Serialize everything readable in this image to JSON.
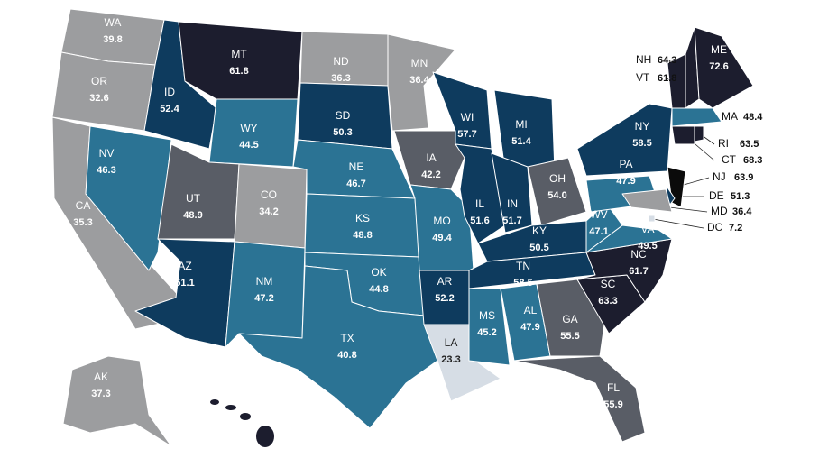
{
  "states": [
    {
      "abbr": "WA",
      "value": 39.8,
      "color": "#9c9d9f"
    },
    {
      "abbr": "OR",
      "value": 32.6,
      "color": "#9c9d9f"
    },
    {
      "abbr": "CA",
      "value": 35.3,
      "color": "#9c9d9f"
    },
    {
      "abbr": "NV",
      "value": 46.3,
      "color": "#2b7394"
    },
    {
      "abbr": "ID",
      "value": 52.4,
      "color": "#0e3b5e"
    },
    {
      "abbr": "MT",
      "value": 61.8,
      "color": "#1c1d2e"
    },
    {
      "abbr": "WY",
      "value": 44.5,
      "color": "#2b7394"
    },
    {
      "abbr": "UT",
      "value": 48.9,
      "color": "#595d66"
    },
    {
      "abbr": "CO",
      "value": 34.2,
      "color": "#9c9d9f"
    },
    {
      "abbr": "AZ",
      "value": 51.1,
      "color": "#0e3b5e"
    },
    {
      "abbr": "NM",
      "value": 47.2,
      "color": "#2b7394"
    },
    {
      "abbr": "ND",
      "value": 36.3,
      "color": "#9c9d9f"
    },
    {
      "abbr": "SD",
      "value": 50.3,
      "color": "#0e3b5e"
    },
    {
      "abbr": "NE",
      "value": 46.7,
      "color": "#2b7394"
    },
    {
      "abbr": "KS",
      "value": 48.8,
      "color": "#2b7394"
    },
    {
      "abbr": "OK",
      "value": 44.8,
      "color": "#2b7394"
    },
    {
      "abbr": "TX",
      "value": 40.8,
      "color": "#2b7394"
    },
    {
      "abbr": "MN",
      "value": 36.4,
      "color": "#9c9d9f"
    },
    {
      "abbr": "IA",
      "value": 42.2,
      "color": "#595d66"
    },
    {
      "abbr": "MO",
      "value": 49.4,
      "color": "#2b7394"
    },
    {
      "abbr": "AR",
      "value": 52.2,
      "color": "#0e3b5e"
    },
    {
      "abbr": "LA",
      "value": 23.3,
      "color": "#d6dde5"
    },
    {
      "abbr": "WI",
      "value": 57.7,
      "color": "#0e3b5e"
    },
    {
      "abbr": "MI",
      "value": 51.4,
      "color": "#0e3b5e"
    },
    {
      "abbr": "IL",
      "value": 51.6,
      "color": "#0e3b5e"
    },
    {
      "abbr": "IN",
      "value": 51.7,
      "color": "#0e3b5e"
    },
    {
      "abbr": "OH",
      "value": 54.0,
      "value_label": "54.0",
      "color": "#595d66"
    },
    {
      "abbr": "KY",
      "value": 50.5,
      "color": "#0e3b5e"
    },
    {
      "abbr": "TN",
      "value": 58.5,
      "color": "#0e3b5e"
    },
    {
      "abbr": "MS",
      "value": 45.2,
      "color": "#2b7394"
    },
    {
      "abbr": "AL",
      "value": 47.9,
      "color": "#2b7394"
    },
    {
      "abbr": "GA",
      "value": 55.5,
      "color": "#595d66"
    },
    {
      "abbr": "FL",
      "value": 55.9,
      "color": "#595d66"
    },
    {
      "abbr": "SC",
      "value": 63.3,
      "color": "#1c1d2e"
    },
    {
      "abbr": "NC",
      "value": 61.7,
      "color": "#1c1d2e"
    },
    {
      "abbr": "VA",
      "value": 49.5,
      "color": "#2b7394"
    },
    {
      "abbr": "WV",
      "value": 47.1,
      "color": "#2b7394"
    },
    {
      "abbr": "PA",
      "value": 47.9,
      "color": "#2b7394"
    },
    {
      "abbr": "NY",
      "value": 58.5,
      "color": "#0e3b5e"
    },
    {
      "abbr": "VT",
      "value": 61.8,
      "color": "#1c1d2e"
    },
    {
      "abbr": "NH",
      "value": 64.3,
      "color": "#1c1d2e"
    },
    {
      "abbr": "ME",
      "value": 72.6,
      "color": "#1c1d2e"
    },
    {
      "abbr": "MA",
      "value": 48.4,
      "color": "#2b7394"
    },
    {
      "abbr": "RI",
      "value": 63.5,
      "color": "#1c1d2e"
    },
    {
      "abbr": "CT",
      "value": 68.3,
      "color": "#1c1d2e"
    },
    {
      "abbr": "NJ",
      "value": 63.9,
      "color": "#0b0b0b"
    },
    {
      "abbr": "DE",
      "value": 51.3,
      "color": "#0e3b5e"
    },
    {
      "abbr": "MD",
      "value": 36.4,
      "color": "#9c9d9f"
    },
    {
      "abbr": "DC",
      "value": 7.2,
      "color": "#d6dde5"
    },
    {
      "abbr": "AK",
      "value": 37.3,
      "color": "#9c9d9f"
    }
  ]
}
